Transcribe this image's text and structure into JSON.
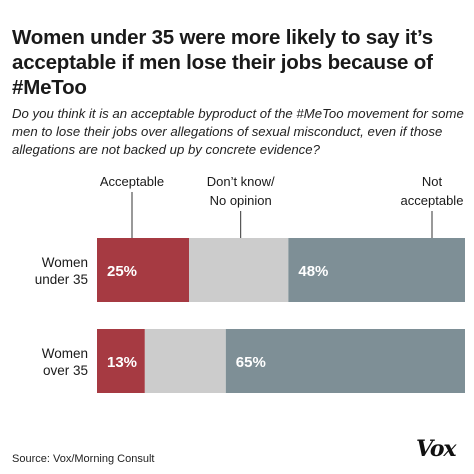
{
  "header": {
    "title": "Women under 35 were more likely to say it’s acceptable if men lose their jobs because of #MeToo",
    "subtitle": "Do you think it is an acceptable byproduct of the #MeToo movement for some men to lose their jobs over allegations of sexual misconduct, even if those allegations are not backed up by concrete evidence?"
  },
  "footer": {
    "source": "Source: Vox/Morning Consult",
    "logo_text": "Vox"
  },
  "colors": {
    "acceptable": "#a63a42",
    "dont_know": "#cccccc",
    "not_acceptable": "#7e8f96",
    "callout_line": "#333333",
    "bar_label": "#ffffff"
  },
  "chart_data": {
    "type": "bar",
    "orientation": "horizontal",
    "stacked": true,
    "percent_stacked": true,
    "categories": [
      [
        "Women",
        "under 35"
      ],
      [
        "Women",
        "over 35"
      ]
    ],
    "series": [
      {
        "name": [
          "Acceptable"
        ],
        "values": [
          25,
          13
        ],
        "labels": [
          "25%",
          "13%"
        ],
        "colorKey": "acceptable"
      },
      {
        "name": [
          "Don’t know/",
          "No opinion"
        ],
        "values": [
          27,
          22
        ],
        "labels": [
          "",
          ""
        ],
        "colorKey": "dont_know"
      },
      {
        "name": [
          "Not",
          "acceptable"
        ],
        "values": [
          48,
          65
        ],
        "labels": [
          "48%",
          "65%"
        ],
        "colorKey": "not_acceptable"
      }
    ],
    "xlim": [
      0,
      100
    ],
    "legend": "top, callout labels above first bar",
    "grid": false
  }
}
